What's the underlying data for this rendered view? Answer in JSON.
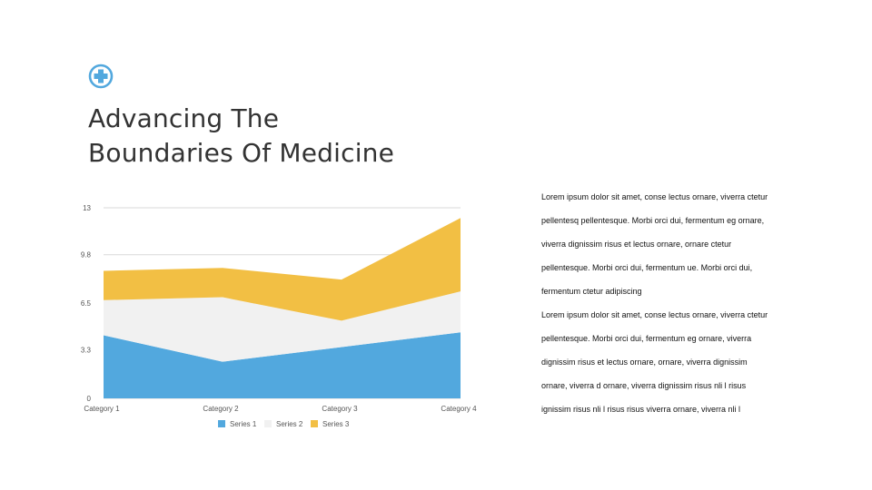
{
  "header": {
    "logo_icon": "medical-cross-icon",
    "title_lines": [
      "Advancing The",
      "Boundaries Of Medicine"
    ]
  },
  "chart_data": {
    "type": "area",
    "stacked": true,
    "categories": [
      "Category 1",
      "Category 2",
      "Category 3",
      "Category 4"
    ],
    "series": [
      {
        "name": "Series 1",
        "values": [
          4.3,
          2.5,
          3.5,
          4.5
        ],
        "color": "#52A8DE"
      },
      {
        "name": "Series 2",
        "values": [
          2.4,
          4.4,
          1.8,
          2.8
        ],
        "color": "#F1F1F1"
      },
      {
        "name": "Series 3",
        "values": [
          2.0,
          2.0,
          2.8,
          5.0
        ],
        "color": "#F2BF44"
      }
    ],
    "yticks": [
      0,
      3.3,
      6.5,
      9.8,
      13
    ],
    "ylim": [
      0,
      13
    ],
    "grid": true,
    "legend": "bottom"
  },
  "text_blocks": [
    [
      "Lorem ipsum dolor sit amet, conse lectus ornare, viverra ctetur",
      "pellentesq pellentesque. Morbi orci dui, fermentum eg ornare,",
      "viverra dignissim risus et lectus ornare, ornare ctetur",
      "pellentesque. Morbi orci dui, fermentum ue. Morbi orci dui,",
      "fermentum ctetur adipiscing"
    ],
    [
      "Lorem ipsum dolor sit amet, conse lectus ornare, viverra ctetur",
      "pellentesque. Morbi orci dui, fermentum eg ornare, viverra",
      "dignissim risus et lectus ornare, ornare, viverra dignissim",
      "ornare, viverra d ornare, viverra dignissim risus nli l risus",
      "ignissim risus nli l risus risus viverra ornare, viverra nli l"
    ]
  ]
}
